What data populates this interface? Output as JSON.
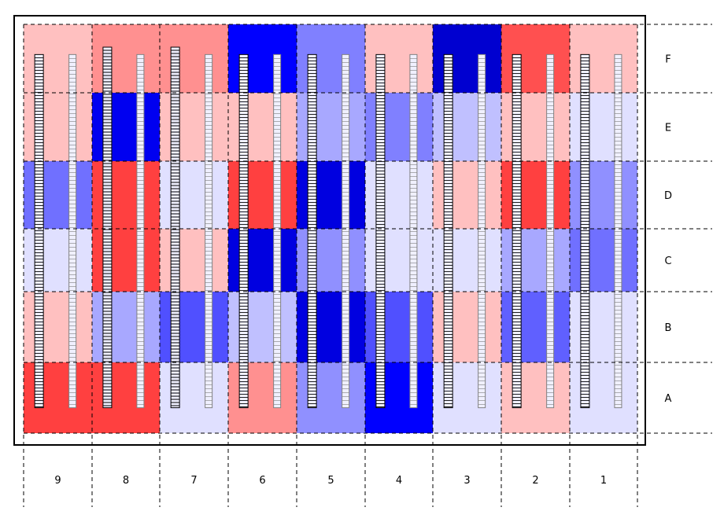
{
  "grid": {
    "row_labels": [
      "F",
      "E",
      "D",
      "C",
      "B",
      "A"
    ],
    "col_labels": [
      "9",
      "8",
      "7",
      "6",
      "5",
      "4",
      "3",
      "2",
      "1"
    ],
    "cells": [
      [
        "#ffc0c0",
        "#ff9090",
        "#ff9090",
        "#0000ff",
        "#8080ff",
        "#ffc0c0",
        "#0000d0",
        "#ff5050",
        "#ffc0c0"
      ],
      [
        "#ffc0c0",
        "#0000f0",
        "#ffc0c0",
        "#ffc0c0",
        "#a8a8ff",
        "#8080ff",
        "#c0c0ff",
        "#ffc0c0",
        "#e0e0ff"
      ],
      [
        "#7070ff",
        "#ff4040",
        "#e0e0ff",
        "#ff4040",
        "#0000e0",
        "#e0e0ff",
        "#ffc0c0",
        "#ff4040",
        "#9090ff"
      ],
      [
        "#e0e0ff",
        "#ff4040",
        "#ffc0c0",
        "#0000e0",
        "#9090ff",
        "#e0e0ff",
        "#e0e0ff",
        "#a8a8ff",
        "#7070ff"
      ],
      [
        "#ffc0c0",
        "#a8a8ff",
        "#5050ff",
        "#c0c0ff",
        "#0000e0",
        "#5050ff",
        "#ffc0c0",
        "#6060ff",
        "#e0e0ff"
      ],
      [
        "#ff4040",
        "#ff4040",
        "#e0e0ff",
        "#ff9090",
        "#9090ff",
        "#0000ff",
        "#e0e0ff",
        "#ffc0c0",
        "#e0e0ff"
      ]
    ]
  },
  "colors": {
    "line": "#000000",
    "strip_fill": "#f0f0ff",
    "strip_edge_dark": "#000000",
    "strip_edge_light": "#808080"
  },
  "strips": [
    {
      "col": 0,
      "style": "dark",
      "sections": [
        [
          0.02,
          0.98
        ],
        [
          0.0,
          0.55
        ]
      ]
    },
    {
      "col": 0,
      "style": "light",
      "sections": [
        [
          0.02,
          0.98
        ]
      ]
    },
    {
      "col": 1,
      "style": "dark",
      "sections": [
        [
          0.0,
          0.98
        ]
      ]
    },
    {
      "col": 1,
      "style": "light",
      "sections": [
        [
          0.02,
          0.98
        ]
      ]
    },
    {
      "col": 2,
      "style": "dark",
      "sections": [
        [
          0.0,
          0.98
        ]
      ]
    },
    {
      "col": 2,
      "style": "light",
      "sections": [
        [
          0.02,
          0.98
        ]
      ]
    },
    {
      "col": 3,
      "style": "dark",
      "sections": [
        [
          0.02,
          0.98
        ]
      ]
    },
    {
      "col": 3,
      "style": "light",
      "sections": [
        [
          0.02,
          0.98
        ]
      ]
    },
    {
      "col": 4,
      "style": "dark",
      "sections": [
        [
          0.02,
          0.98
        ]
      ]
    },
    {
      "col": 4,
      "style": "light",
      "sections": [
        [
          0.02,
          0.98
        ]
      ]
    },
    {
      "col": 5,
      "style": "dark",
      "sections": [
        [
          0.02,
          0.98
        ]
      ]
    },
    {
      "col": 5,
      "style": "light",
      "sections": [
        [
          0.02,
          0.98
        ]
      ]
    },
    {
      "col": 6,
      "style": "dark",
      "sections": [
        [
          0.02,
          0.98
        ]
      ]
    },
    {
      "col": 6,
      "style": "light",
      "sections": [
        [
          0.02,
          0.98
        ]
      ]
    },
    {
      "col": 7,
      "style": "dark",
      "sections": [
        [
          0.02,
          0.98
        ]
      ]
    },
    {
      "col": 7,
      "style": "light",
      "sections": [
        [
          0.02,
          0.98
        ]
      ]
    },
    {
      "col": 8,
      "style": "dark",
      "sections": [
        [
          0.02,
          0.98
        ]
      ]
    },
    {
      "col": 8,
      "style": "light",
      "sections": [
        [
          0.02,
          0.98
        ]
      ]
    }
  ]
}
